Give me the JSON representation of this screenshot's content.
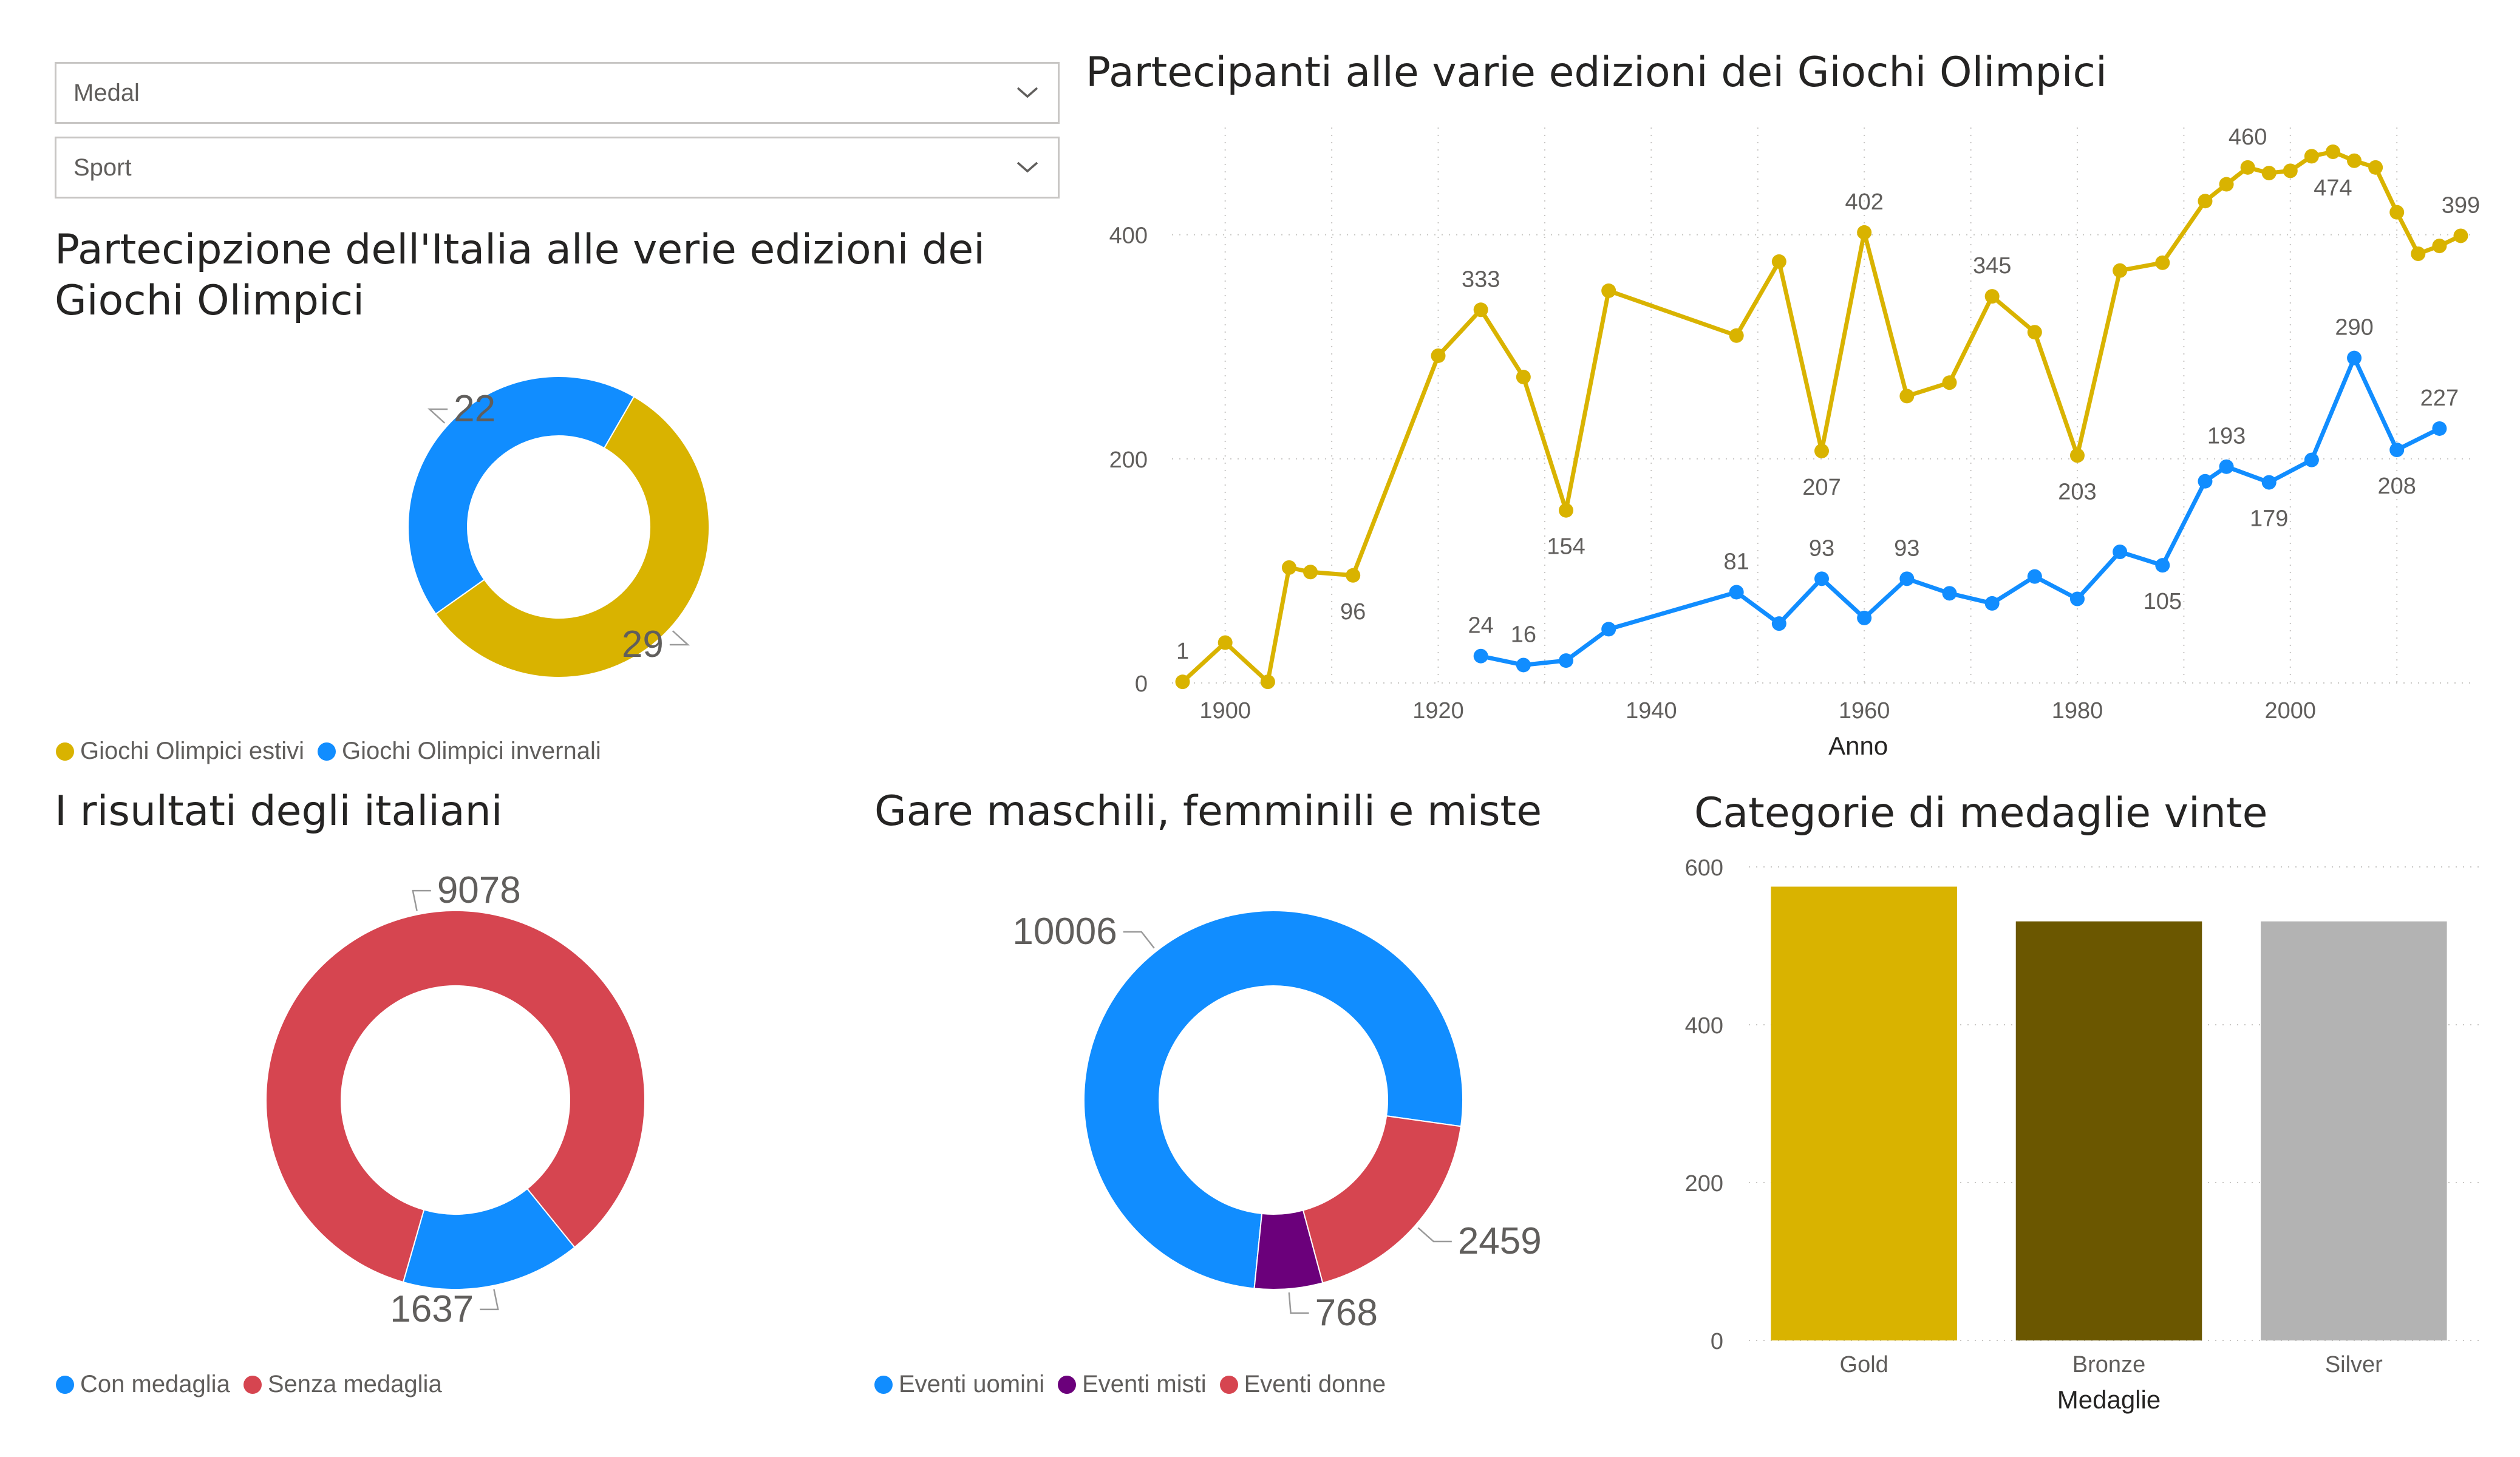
{
  "slicers": {
    "medal": {
      "label": "Medal"
    },
    "sport": {
      "label": "Sport"
    }
  },
  "colors": {
    "gold": "#D9B300",
    "blue": "#118DFF",
    "red": "#D64550",
    "purple": "#6B007B",
    "bronze": "#6B5700",
    "silver": "#B3B3B3"
  },
  "chart_data": [
    {
      "id": "partecipazione_italia",
      "type": "pie",
      "title": "Partecipzione dell'Italia alle verie edizioni dei Giochi Olimpici",
      "title_lines": [
        "Partecipzione dell'Italia alle verie edizioni dei",
        "Giochi Olimpici"
      ],
      "slices": [
        {
          "name": "Giochi Olimpici estivi",
          "value": 29,
          "label": "29",
          "color": "#D9B300"
        },
        {
          "name": "Giochi Olimpici invernali",
          "value": 22,
          "label": "22",
          "color": "#118DFF"
        }
      ],
      "legend_position": "bottom-left"
    },
    {
      "id": "partecipanti",
      "type": "line",
      "title": "Partecipanti alle varie edizioni dei Giochi Olimpici",
      "xlabel": "Anno",
      "ylabel": "",
      "xlim": [
        1895,
        2017
      ],
      "ylim": [
        0,
        474
      ],
      "xticks": [
        "1900",
        "1920",
        "1940",
        "1960",
        "1980",
        "2000"
      ],
      "yticks": [
        "0",
        "200",
        "400"
      ],
      "grid": true,
      "series": [
        {
          "color": "#D9B300",
          "x": [
            1896,
            1900,
            1904,
            1906,
            1908,
            1912,
            1920,
            1924,
            1928,
            1932,
            1936,
            1948,
            1952,
            1956,
            1960,
            1964,
            1968,
            1972,
            1976,
            1980,
            1984,
            1988,
            1992,
            1994,
            1996,
            1998,
            2000,
            2002,
            2004,
            2006,
            2008,
            2010,
            2012,
            2014,
            2016
          ],
          "y": [
            1,
            36,
            1,
            103,
            99,
            96,
            292,
            333,
            273,
            154,
            350,
            310,
            376,
            207,
            402,
            256,
            268,
            345,
            313,
            203,
            368,
            375,
            430,
            445,
            460,
            455,
            457,
            470,
            474,
            466,
            460,
            420,
            383,
            390,
            399
          ],
          "labels": [
            {
              "x": 1896,
              "y": 1,
              "text": "1",
              "pos": "above"
            },
            {
              "x": 1912,
              "y": 96,
              "text": "96",
              "pos": "below"
            },
            {
              "x": 1924,
              "y": 333,
              "text": "333",
              "pos": "above"
            },
            {
              "x": 1932,
              "y": 154,
              "text": "154",
              "pos": "below"
            },
            {
              "x": 1956,
              "y": 207,
              "text": "207",
              "pos": "below"
            },
            {
              "x": 1960,
              "y": 402,
              "text": "402",
              "pos": "above"
            },
            {
              "x": 1972,
              "y": 345,
              "text": "345",
              "pos": "above"
            },
            {
              "x": 1980,
              "y": 203,
              "text": "203",
              "pos": "below"
            },
            {
              "x": 1996,
              "y": 460,
              "text": "460",
              "pos": "above"
            },
            {
              "x": 2004,
              "y": 474,
              "text": "474",
              "pos": "below"
            },
            {
              "x": 2016,
              "y": 399,
              "text": "399",
              "pos": "above"
            }
          ]
        },
        {
          "color": "#118DFF",
          "x": [
            1924,
            1928,
            1932,
            1936,
            1948,
            1952,
            1956,
            1960,
            1964,
            1968,
            1972,
            1976,
            1980,
            1984,
            1988,
            1992,
            1994,
            1998,
            2002,
            2006,
            2010,
            2014
          ],
          "y": [
            24,
            16,
            20,
            48,
            81,
            53,
            93,
            58,
            93,
            80,
            71,
            95,
            75,
            117,
            105,
            180,
            193,
            179,
            199,
            290,
            208,
            227
          ],
          "labels": [
            {
              "x": 1924,
              "y": 24,
              "text": "24",
              "pos": "above"
            },
            {
              "x": 1928,
              "y": 16,
              "text": "16",
              "pos": "above"
            },
            {
              "x": 1948,
              "y": 81,
              "text": "81",
              "pos": "above"
            },
            {
              "x": 1956,
              "y": 93,
              "text": "93",
              "pos": "above"
            },
            {
              "x": 1964,
              "y": 93,
              "text": "93",
              "pos": "above"
            },
            {
              "x": 1988,
              "y": 105,
              "text": "105",
              "pos": "below"
            },
            {
              "x": 1994,
              "y": 193,
              "text": "193",
              "pos": "above"
            },
            {
              "x": 1998,
              "y": 179,
              "text": "179",
              "pos": "below"
            },
            {
              "x": 2006,
              "y": 290,
              "text": "290",
              "pos": "above"
            },
            {
              "x": 2010,
              "y": 208,
              "text": "208",
              "pos": "below"
            },
            {
              "x": 2014,
              "y": 227,
              "text": "227",
              "pos": "above"
            }
          ]
        }
      ]
    },
    {
      "id": "risultati",
      "type": "pie",
      "title": "I risultati degli italiani",
      "slices": [
        {
          "name": "Con medaglia",
          "value": 1637,
          "label": "1637",
          "color": "#118DFF"
        },
        {
          "name": "Senza medaglia",
          "value": 9078,
          "label": "9078",
          "color": "#D64550"
        }
      ],
      "legend_position": "bottom-left"
    },
    {
      "id": "gare",
      "type": "pie",
      "title": "Gare maschili, femminili e miste",
      "slices": [
        {
          "name": "Eventi uomini",
          "value": 10006,
          "label": "10006",
          "color": "#118DFF"
        },
        {
          "name": "Eventi misti",
          "value": 768,
          "label": "768",
          "color": "#6B007B"
        },
        {
          "name": "Eventi donne",
          "value": 2459,
          "label": "2459",
          "color": "#D64550"
        }
      ],
      "legend_position": "bottom-left"
    },
    {
      "id": "categorie",
      "type": "bar",
      "title": "Categorie di medaglie vinte",
      "xlabel": "Medaglie",
      "ylabel": "",
      "categories": [
        "Gold",
        "Bronze",
        "Silver"
      ],
      "values": [
        575,
        531,
        531
      ],
      "colors": [
        "#D9B300",
        "#6B5700",
        "#B3B3B3"
      ],
      "ylim": [
        0,
        600
      ],
      "yticks": [
        "0",
        "200",
        "400",
        "600"
      ],
      "grid": true
    }
  ]
}
